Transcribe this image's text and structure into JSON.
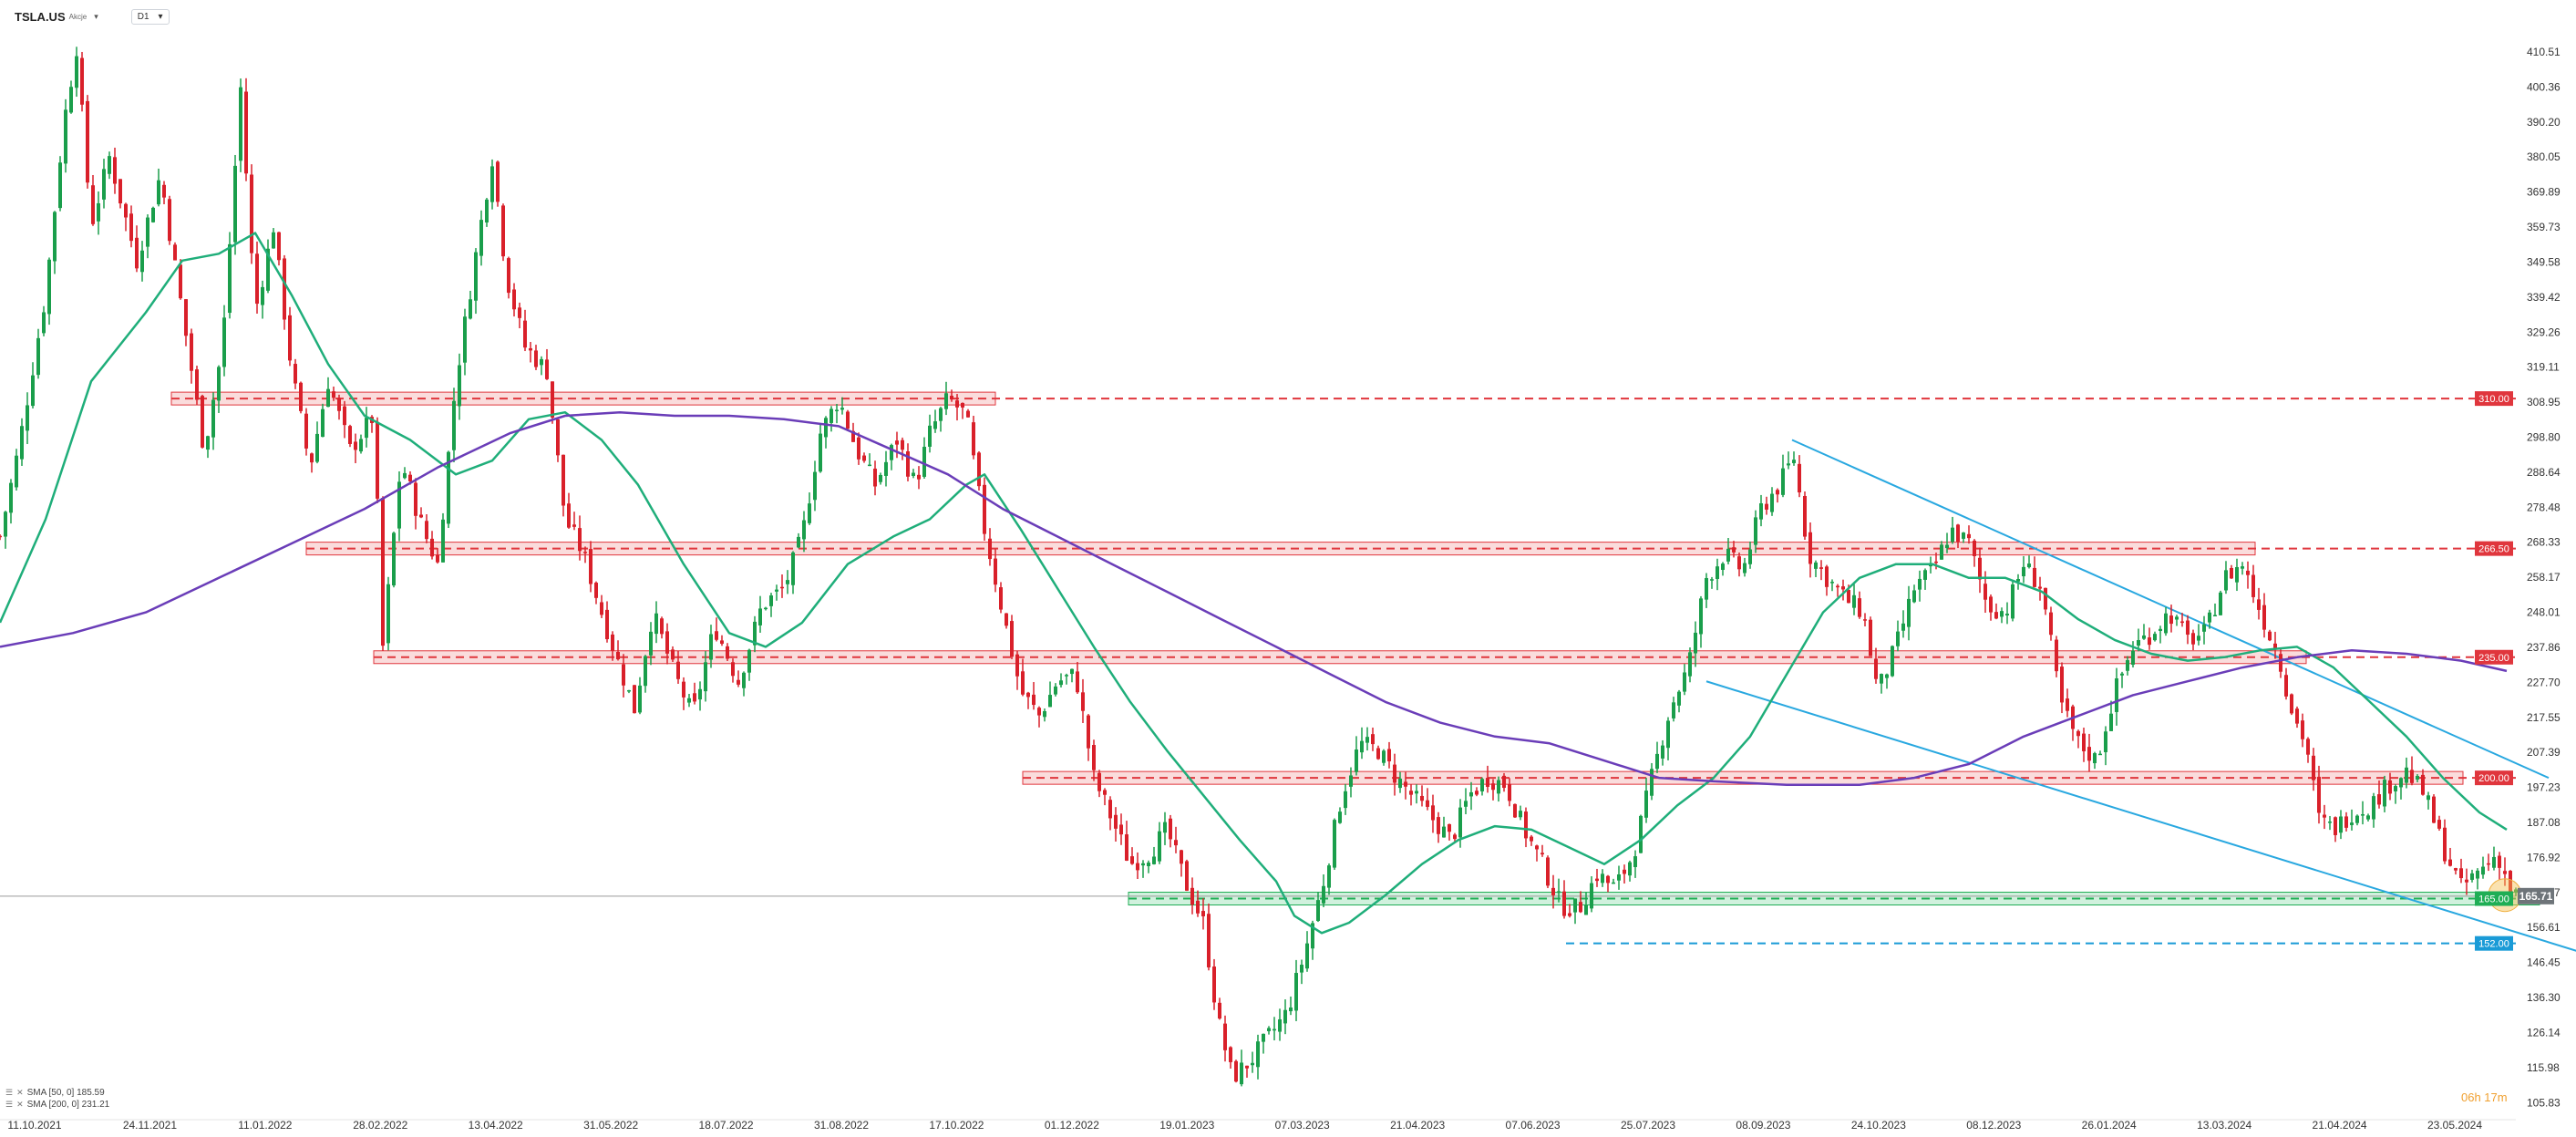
{
  "header": {
    "symbol": "TSLA.US",
    "symbol_type": "Akcje",
    "timeframe": "D1"
  },
  "indicators": [
    {
      "label": "SMA [50, 0] 185.59",
      "color": "#1fae7a"
    },
    {
      "label": "SMA [200, 0] 231.21",
      "color": "#6a3db8"
    }
  ],
  "countdown": "06h 17m",
  "chart_data": {
    "type": "candlestick",
    "symbol": "TSLA.US",
    "timeframe": "D1",
    "ylim": [
      103,
      415
    ],
    "y_ticks": [
      "410.51",
      "400.36",
      "390.20",
      "380.05",
      "369.89",
      "359.73",
      "349.58",
      "339.42",
      "329.26",
      "319.11",
      "308.95",
      "298.80",
      "288.64",
      "278.48",
      "268.33",
      "258.17",
      "248.01",
      "237.86",
      "227.70",
      "217.55",
      "207.39",
      "197.23",
      "187.08",
      "176.92",
      "166.77",
      "156.61",
      "146.45",
      "136.30",
      "126.14",
      "115.98",
      "105.83"
    ],
    "x_ticks": [
      "11.10.2021",
      "24.11.2021",
      "11.01.2022",
      "28.02.2022",
      "13.04.2022",
      "31.05.2022",
      "18.07.2022",
      "31.08.2022",
      "17.10.2022",
      "01.12.2022",
      "19.01.2023",
      "07.03.2023",
      "21.04.2023",
      "07.06.2023",
      "25.07.2023",
      "08.09.2023",
      "24.10.2023",
      "08.12.2023",
      "26.01.2024",
      "13.03.2024",
      "21.04.2024",
      "23.05.2024"
    ],
    "current_price": "165.71",
    "price_path": [
      [
        0,
        270
      ],
      [
        10,
        295
      ],
      [
        25,
        340
      ],
      [
        35,
        390
      ],
      [
        42,
        412
      ],
      [
        50,
        360
      ],
      [
        60,
        380
      ],
      [
        75,
        350
      ],
      [
        88,
        375
      ],
      [
        100,
        335
      ],
      [
        112,
        295
      ],
      [
        122,
        325
      ],
      [
        132,
        400
      ],
      [
        140,
        335
      ],
      [
        150,
        360
      ],
      [
        160,
        318
      ],
      [
        170,
        290
      ],
      [
        180,
        315
      ],
      [
        192,
        295
      ],
      [
        205,
        305
      ],
      [
        210,
        238
      ],
      [
        220,
        292
      ],
      [
        232,
        272
      ],
      [
        240,
        262
      ],
      [
        250,
        315
      ],
      [
        262,
        355
      ],
      [
        270,
        380
      ],
      [
        278,
        345
      ],
      [
        288,
        325
      ],
      [
        300,
        318
      ],
      [
        310,
        275
      ],
      [
        320,
        265
      ],
      [
        330,
        248
      ],
      [
        340,
        232
      ],
      [
        348,
        220
      ],
      [
        358,
        248
      ],
      [
        370,
        230
      ],
      [
        380,
        218
      ],
      [
        392,
        244
      ],
      [
        405,
        228
      ],
      [
        418,
        250
      ],
      [
        430,
        255
      ],
      [
        440,
        270
      ],
      [
        450,
        300
      ],
      [
        460,
        310
      ],
      [
        470,
        295
      ],
      [
        480,
        285
      ],
      [
        492,
        298
      ],
      [
        502,
        285
      ],
      [
        510,
        300
      ],
      [
        520,
        310
      ],
      [
        530,
        305
      ],
      [
        540,
        272
      ],
      [
        550,
        248
      ],
      [
        560,
        225
      ],
      [
        570,
        218
      ],
      [
        580,
        228
      ],
      [
        590,
        230
      ],
      [
        600,
        200
      ],
      [
        610,
        188
      ],
      [
        620,
        175
      ],
      [
        630,
        178
      ],
      [
        640,
        185
      ],
      [
        650,
        170
      ],
      [
        660,
        158
      ],
      [
        668,
        130
      ],
      [
        676,
        113
      ],
      [
        686,
        118
      ],
      [
        696,
        125
      ],
      [
        706,
        132
      ],
      [
        716,
        150
      ],
      [
        726,
        170
      ],
      [
        736,
        195
      ],
      [
        746,
        210
      ],
      [
        756,
        208
      ],
      [
        766,
        200
      ],
      [
        776,
        194
      ],
      [
        786,
        188
      ],
      [
        796,
        182
      ],
      [
        806,
        195
      ],
      [
        816,
        200
      ],
      [
        826,
        198
      ],
      [
        836,
        185
      ],
      [
        846,
        175
      ],
      [
        856,
        163
      ],
      [
        866,
        162
      ],
      [
        876,
        172
      ],
      [
        886,
        168
      ],
      [
        896,
        178
      ],
      [
        906,
        200
      ],
      [
        916,
        220
      ],
      [
        926,
        232
      ],
      [
        936,
        258
      ],
      [
        946,
        265
      ],
      [
        956,
        260
      ],
      [
        966,
        278
      ],
      [
        976,
        285
      ],
      [
        984,
        293
      ],
      [
        992,
        265
      ],
      [
        1002,
        258
      ],
      [
        1012,
        252
      ],
      [
        1022,
        248
      ],
      [
        1030,
        225
      ],
      [
        1040,
        238
      ],
      [
        1050,
        255
      ],
      [
        1060,
        260
      ],
      [
        1070,
        272
      ],
      [
        1080,
        268
      ],
      [
        1090,
        250
      ],
      [
        1100,
        248
      ],
      [
        1110,
        262
      ],
      [
        1120,
        255
      ],
      [
        1130,
        222
      ],
      [
        1140,
        210
      ],
      [
        1150,
        205
      ],
      [
        1160,
        225
      ],
      [
        1170,
        238
      ],
      [
        1180,
        242
      ],
      [
        1190,
        248
      ],
      [
        1200,
        240
      ],
      [
        1210,
        242
      ],
      [
        1220,
        258
      ],
      [
        1230,
        262
      ],
      [
        1240,
        248
      ],
      [
        1250,
        235
      ],
      [
        1258,
        218
      ],
      [
        1265,
        210
      ],
      [
        1272,
        188
      ],
      [
        1280,
        185
      ],
      [
        1290,
        190
      ],
      [
        1300,
        192
      ],
      [
        1310,
        198
      ],
      [
        1320,
        202
      ],
      [
        1330,
        195
      ],
      [
        1340,
        180
      ],
      [
        1350,
        168
      ],
      [
        1360,
        173
      ],
      [
        1370,
        178
      ],
      [
        1378,
        166
      ]
    ],
    "sma50": [
      [
        0,
        245
      ],
      [
        25,
        275
      ],
      [
        50,
        315
      ],
      [
        80,
        335
      ],
      [
        100,
        350
      ],
      [
        120,
        352
      ],
      [
        140,
        358
      ],
      [
        160,
        340
      ],
      [
        180,
        320
      ],
      [
        200,
        305
      ],
      [
        225,
        298
      ],
      [
        250,
        288
      ],
      [
        270,
        292
      ],
      [
        290,
        304
      ],
      [
        310,
        306
      ],
      [
        330,
        298
      ],
      [
        350,
        285
      ],
      [
        375,
        262
      ],
      [
        400,
        242
      ],
      [
        420,
        238
      ],
      [
        440,
        245
      ],
      [
        465,
        262
      ],
      [
        490,
        270
      ],
      [
        510,
        275
      ],
      [
        530,
        285
      ],
      [
        540,
        288
      ],
      [
        560,
        272
      ],
      [
        580,
        255
      ],
      [
        600,
        238
      ],
      [
        620,
        222
      ],
      [
        640,
        208
      ],
      [
        660,
        195
      ],
      [
        680,
        182
      ],
      [
        700,
        170
      ],
      [
        710,
        160
      ],
      [
        725,
        155
      ],
      [
        740,
        158
      ],
      [
        760,
        166
      ],
      [
        780,
        175
      ],
      [
        800,
        182
      ],
      [
        820,
        186
      ],
      [
        840,
        185
      ],
      [
        860,
        180
      ],
      [
        880,
        175
      ],
      [
        900,
        182
      ],
      [
        920,
        192
      ],
      [
        940,
        200
      ],
      [
        960,
        212
      ],
      [
        980,
        230
      ],
      [
        1000,
        248
      ],
      [
        1020,
        258
      ],
      [
        1040,
        262
      ],
      [
        1060,
        262
      ],
      [
        1080,
        258
      ],
      [
        1100,
        258
      ],
      [
        1120,
        254
      ],
      [
        1140,
        246
      ],
      [
        1160,
        240
      ],
      [
        1180,
        236
      ],
      [
        1200,
        234
      ],
      [
        1220,
        235
      ],
      [
        1240,
        237
      ],
      [
        1260,
        238
      ],
      [
        1280,
        232
      ],
      [
        1300,
        222
      ],
      [
        1320,
        212
      ],
      [
        1340,
        200
      ],
      [
        1360,
        190
      ],
      [
        1375,
        185
      ]
    ],
    "sma200": [
      [
        0,
        238
      ],
      [
        40,
        242
      ],
      [
        80,
        248
      ],
      [
        120,
        258
      ],
      [
        160,
        268
      ],
      [
        200,
        278
      ],
      [
        240,
        290
      ],
      [
        280,
        300
      ],
      [
        310,
        305
      ],
      [
        340,
        306
      ],
      [
        370,
        305
      ],
      [
        400,
        305
      ],
      [
        430,
        304
      ],
      [
        460,
        302
      ],
      [
        490,
        295
      ],
      [
        520,
        288
      ],
      [
        550,
        278
      ],
      [
        580,
        270
      ],
      [
        610,
        262
      ],
      [
        640,
        254
      ],
      [
        670,
        246
      ],
      [
        700,
        238
      ],
      [
        730,
        230
      ],
      [
        760,
        222
      ],
      [
        790,
        216
      ],
      [
        820,
        212
      ],
      [
        850,
        210
      ],
      [
        880,
        205
      ],
      [
        910,
        200
      ],
      [
        940,
        199
      ],
      [
        980,
        198
      ],
      [
        1020,
        198
      ],
      [
        1050,
        200
      ],
      [
        1080,
        204
      ],
      [
        1110,
        212
      ],
      [
        1140,
        218
      ],
      [
        1170,
        224
      ],
      [
        1200,
        228
      ],
      [
        1230,
        232
      ],
      [
        1260,
        235
      ],
      [
        1290,
        237
      ],
      [
        1320,
        236
      ],
      [
        1350,
        234
      ],
      [
        1375,
        231
      ]
    ],
    "horizontal_levels": [
      {
        "value": 310.0,
        "label": "310.00",
        "color": "#e0363d",
        "kind": "resistance",
        "zone_start": 94,
        "zone_end": 546
      },
      {
        "value": 266.5,
        "label": "266.50",
        "color": "#e0363d",
        "kind": "resistance",
        "zone_start": 168,
        "zone_end": 1237
      },
      {
        "value": 235.0,
        "label": "235.00",
        "color": "#e0363d",
        "kind": "resistance",
        "zone_start": 205,
        "zone_end": 1265
      },
      {
        "value": 200.0,
        "label": "200.00",
        "color": "#e0363d",
        "kind": "resistance",
        "zone_start": 561,
        "zone_end": 1351
      },
      {
        "value": 165.0,
        "label": "165.00",
        "color": "#1fae55",
        "kind": "support",
        "zone_start": 619,
        "zone_end": 1393
      },
      {
        "value": 152.0,
        "label": "152.00",
        "color": "#1a9bd7",
        "kind": "support",
        "line_start": 859
      }
    ],
    "trendlines": [
      {
        "from": [
          983,
          298
        ],
        "to": [
          1398,
          200
        ],
        "color": "#29a8e0"
      },
      {
        "from": [
          936,
          228
        ],
        "to": [
          1455,
          143
        ],
        "color": "#29a8e0"
      }
    ],
    "highlight_circle": {
      "x": 1374,
      "y": 166
    },
    "grid": false,
    "legend": "bottom-left"
  }
}
